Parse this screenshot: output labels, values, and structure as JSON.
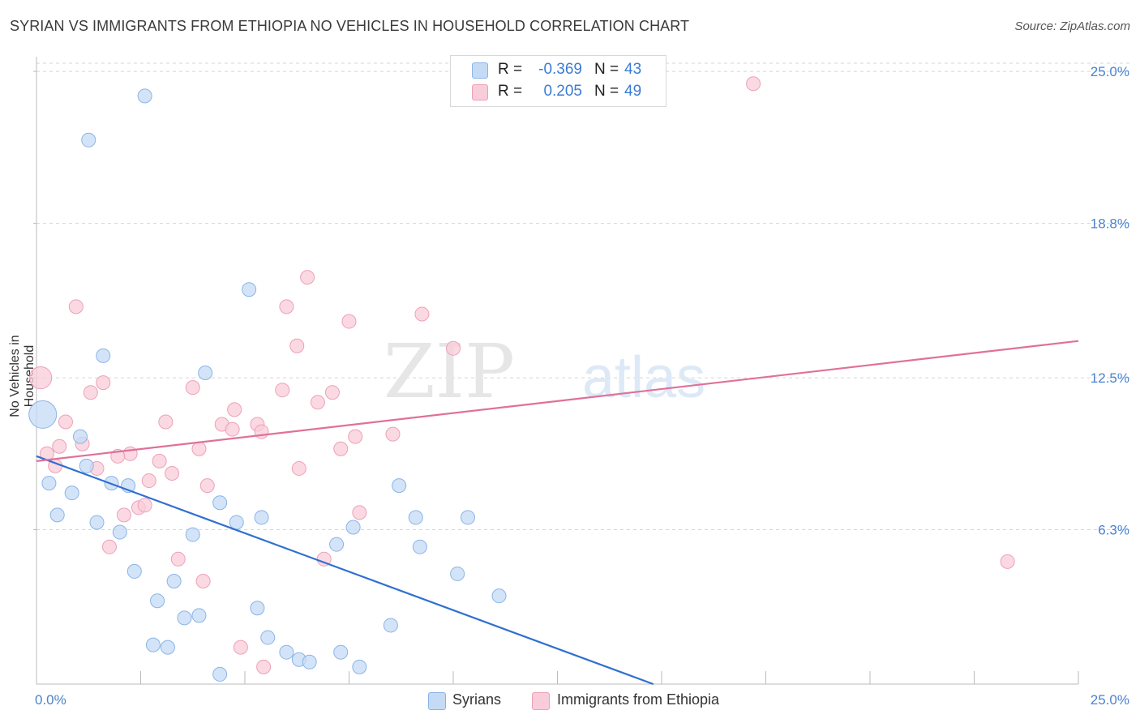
{
  "header": {
    "title": "SYRIAN VS IMMIGRANTS FROM ETHIOPIA NO VEHICLES IN HOUSEHOLD CORRELATION CHART",
    "source": "Source: ZipAtlas.com"
  },
  "watermark": {
    "zip": "ZIP",
    "atlas": "atlas"
  },
  "stats_legend": [
    {
      "r_label": "R =",
      "r_value": "-0.369",
      "n_label": "N =",
      "n_value": "43",
      "color": "#a8c8f0"
    },
    {
      "r_label": "R =",
      "r_value": "0.205",
      "n_label": "N =",
      "n_value": "49",
      "color": "#f5b8cc"
    }
  ],
  "colors": {
    "syrians_fill": "#c5dbf5",
    "syrians_stroke": "#8ab4e6",
    "syrians_line": "#2f6fd0",
    "ethiopia_fill": "#f9ccd9",
    "ethiopia_stroke": "#eda0b8",
    "ethiopia_line": "#e0709a",
    "tick_label": "#4a82d0",
    "grid": "#d5d5d5"
  },
  "chart_data": {
    "type": "scatter",
    "title": "SYRIAN VS IMMIGRANTS FROM ETHIOPIA NO VEHICLES IN HOUSEHOLD CORRELATION CHART",
    "xlabel": "",
    "ylabel": "No Vehicles in Household",
    "xlim": [
      0,
      25
    ],
    "ylim": [
      0,
      25.6
    ],
    "x_tick_labels": [
      "0.0%",
      "25.0%"
    ],
    "y_ticks": [
      {
        "value": 6.3,
        "label": "6.3%"
      },
      {
        "value": 12.5,
        "label": "12.5%"
      },
      {
        "value": 18.8,
        "label": "18.8%"
      },
      {
        "value": 25.0,
        "label": "25.0%"
      }
    ],
    "grid": "horizontal dashed",
    "legend_position": "bottom-center",
    "series": [
      {
        "name": "Syrians",
        "trend": {
          "x": [
            0,
            14.8
          ],
          "y": [
            9.3,
            0
          ]
        },
        "points": [
          {
            "x": 0.15,
            "y": 11.0,
            "s": 2
          },
          {
            "x": 2.6,
            "y": 24.0
          },
          {
            "x": 1.25,
            "y": 22.2
          },
          {
            "x": 5.1,
            "y": 16.1
          },
          {
            "x": 1.6,
            "y": 13.4
          },
          {
            "x": 4.05,
            "y": 12.7
          },
          {
            "x": 1.05,
            "y": 10.1
          },
          {
            "x": 1.2,
            "y": 8.9
          },
          {
            "x": 0.3,
            "y": 8.2
          },
          {
            "x": 0.85,
            "y": 7.8
          },
          {
            "x": 1.8,
            "y": 8.2
          },
          {
            "x": 2.2,
            "y": 8.1
          },
          {
            "x": 8.7,
            "y": 8.1
          },
          {
            "x": 4.4,
            "y": 7.4
          },
          {
            "x": 0.5,
            "y": 6.9
          },
          {
            "x": 1.45,
            "y": 6.6
          },
          {
            "x": 4.8,
            "y": 6.6
          },
          {
            "x": 5.4,
            "y": 6.8
          },
          {
            "x": 9.1,
            "y": 6.8
          },
          {
            "x": 10.35,
            "y": 6.8
          },
          {
            "x": 2.0,
            "y": 6.2
          },
          {
            "x": 3.75,
            "y": 6.1
          },
          {
            "x": 7.2,
            "y": 5.7
          },
          {
            "x": 7.6,
            "y": 6.4
          },
          {
            "x": 9.2,
            "y": 5.6
          },
          {
            "x": 2.35,
            "y": 4.6
          },
          {
            "x": 3.3,
            "y": 4.2
          },
          {
            "x": 10.1,
            "y": 4.5
          },
          {
            "x": 2.9,
            "y": 3.4
          },
          {
            "x": 5.3,
            "y": 3.1
          },
          {
            "x": 11.1,
            "y": 3.6
          },
          {
            "x": 3.55,
            "y": 2.7
          },
          {
            "x": 3.9,
            "y": 2.8
          },
          {
            "x": 8.5,
            "y": 2.4
          },
          {
            "x": 5.55,
            "y": 1.9
          },
          {
            "x": 2.8,
            "y": 1.6
          },
          {
            "x": 3.15,
            "y": 1.5
          },
          {
            "x": 6.0,
            "y": 1.3
          },
          {
            "x": 7.3,
            "y": 1.3
          },
          {
            "x": 6.3,
            "y": 1.0
          },
          {
            "x": 6.55,
            "y": 0.9
          },
          {
            "x": 7.75,
            "y": 0.7
          },
          {
            "x": 4.4,
            "y": 0.4
          }
        ]
      },
      {
        "name": "Immigrants from Ethiopia",
        "trend": {
          "x": [
            0,
            25
          ],
          "y": [
            9.1,
            14.0
          ]
        },
        "points": [
          {
            "x": 0.1,
            "y": 12.5,
            "s": 1.6
          },
          {
            "x": 17.2,
            "y": 24.5
          },
          {
            "x": 6.5,
            "y": 16.6
          },
          {
            "x": 0.95,
            "y": 15.4
          },
          {
            "x": 6.0,
            "y": 15.4
          },
          {
            "x": 9.25,
            "y": 15.1
          },
          {
            "x": 7.5,
            "y": 14.8
          },
          {
            "x": 6.25,
            "y": 13.8
          },
          {
            "x": 10.0,
            "y": 13.7
          },
          {
            "x": 1.6,
            "y": 12.3
          },
          {
            "x": 3.75,
            "y": 12.1
          },
          {
            "x": 5.9,
            "y": 12.0
          },
          {
            "x": 1.3,
            "y": 11.9
          },
          {
            "x": 7.1,
            "y": 11.9
          },
          {
            "x": 6.75,
            "y": 11.5
          },
          {
            "x": 4.75,
            "y": 11.2
          },
          {
            "x": 0.7,
            "y": 10.7
          },
          {
            "x": 3.1,
            "y": 10.7
          },
          {
            "x": 4.45,
            "y": 10.6
          },
          {
            "x": 5.3,
            "y": 10.6
          },
          {
            "x": 4.7,
            "y": 10.4
          },
          {
            "x": 5.4,
            "y": 10.3
          },
          {
            "x": 8.55,
            "y": 10.2
          },
          {
            "x": 7.65,
            "y": 10.1
          },
          {
            "x": 1.1,
            "y": 9.8
          },
          {
            "x": 0.55,
            "y": 9.7
          },
          {
            "x": 3.9,
            "y": 9.6
          },
          {
            "x": 7.3,
            "y": 9.6
          },
          {
            "x": 0.25,
            "y": 9.4
          },
          {
            "x": 2.25,
            "y": 9.4
          },
          {
            "x": 1.95,
            "y": 9.3
          },
          {
            "x": 2.95,
            "y": 9.1
          },
          {
            "x": 0.45,
            "y": 8.9
          },
          {
            "x": 1.45,
            "y": 8.8
          },
          {
            "x": 6.3,
            "y": 8.8
          },
          {
            "x": 3.25,
            "y": 8.6
          },
          {
            "x": 2.7,
            "y": 8.3
          },
          {
            "x": 4.1,
            "y": 8.1
          },
          {
            "x": 2.45,
            "y": 7.2
          },
          {
            "x": 2.6,
            "y": 7.3
          },
          {
            "x": 2.1,
            "y": 6.9
          },
          {
            "x": 7.75,
            "y": 7.0
          },
          {
            "x": 1.75,
            "y": 5.6
          },
          {
            "x": 3.4,
            "y": 5.1
          },
          {
            "x": 6.9,
            "y": 5.1
          },
          {
            "x": 23.3,
            "y": 5.0
          },
          {
            "x": 4.0,
            "y": 4.2
          },
          {
            "x": 4.9,
            "y": 1.5
          },
          {
            "x": 5.45,
            "y": 0.7
          }
        ]
      }
    ]
  }
}
